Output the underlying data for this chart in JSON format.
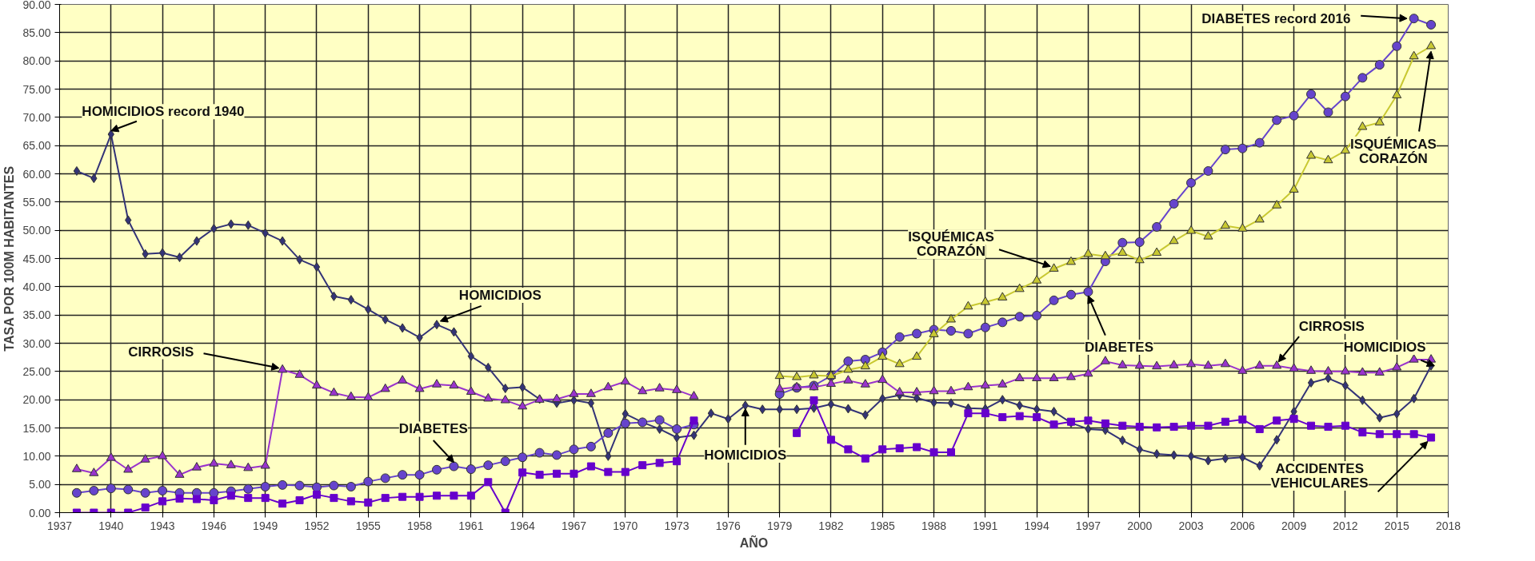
{
  "chart_data": {
    "type": "line",
    "xlabel": "AÑO",
    "ylabel": "TASA POR 100M HABITANTES",
    "x": [
      1938,
      1939,
      1940,
      1941,
      1942,
      1943,
      1944,
      1945,
      1946,
      1947,
      1948,
      1949,
      1950,
      1951,
      1952,
      1953,
      1954,
      1955,
      1956,
      1957,
      1958,
      1959,
      1960,
      1961,
      1962,
      1963,
      1964,
      1965,
      1966,
      1967,
      1968,
      1969,
      1970,
      1971,
      1972,
      1973,
      1974,
      1975,
      1976,
      1977,
      1978,
      1979,
      1980,
      1981,
      1982,
      1983,
      1984,
      1985,
      1986,
      1987,
      1988,
      1989,
      1990,
      1991,
      1992,
      1993,
      1994,
      1995,
      1996,
      1997,
      1998,
      1999,
      2000,
      2001,
      2002,
      2003,
      2004,
      2005,
      2006,
      2007,
      2008,
      2009,
      2010,
      2011,
      2012,
      2013,
      2014,
      2015,
      2016,
      2017
    ],
    "series": [
      {
        "color": "#333377",
        "marker": "diamond",
        "values": [
          60.5,
          59.2,
          67,
          51.8,
          45.8,
          46,
          45.2,
          48.1,
          50.3,
          51.1,
          50.9,
          49.5,
          48.1,
          44.8,
          43.5,
          38.3,
          37.7,
          36,
          34.2,
          32.7,
          31,
          33.3,
          32,
          27.7,
          25.7,
          22,
          22.2,
          20.1,
          19.4,
          19.9,
          19.4,
          10,
          17.5,
          16,
          14.8,
          13.3,
          13.7,
          17.6,
          16.6,
          19,
          18.3,
          18.3,
          18.3,
          18.5,
          19.2,
          18.4,
          17.3,
          20.2,
          20.8,
          20.3,
          19.5,
          19.4,
          18.5,
          18.4,
          20,
          19,
          18.3,
          17.9,
          15.9,
          14.8,
          14.6,
          12.8,
          11.2,
          10.4,
          10.2,
          10,
          9.2,
          9.6,
          9.8,
          8.3,
          12.9,
          17.9,
          23,
          23.8,
          22.5,
          19.9,
          16.8,
          17.5,
          20.2,
          26
        ]
      },
      {
        "color": "#6644cc",
        "marker": "circle",
        "values": [
          3.5,
          3.9,
          4.3,
          4.1,
          3.5,
          3.9,
          3.5,
          3.5,
          3.5,
          3.8,
          4.2,
          4.6,
          4.9,
          4.8,
          4.5,
          4.8,
          4.6,
          5.5,
          6.1,
          6.7,
          6.7,
          7.6,
          8.2,
          7.7,
          8.4,
          9.1,
          9.8,
          10.6,
          10.2,
          11.2,
          11.7,
          14.1,
          15.8,
          16,
          16.4,
          14.8,
          15.6,
          null,
          null,
          null,
          null,
          21,
          22.1,
          22.5,
          24.2,
          26.8,
          27.1,
          28.4,
          31.1,
          31.7,
          32.4,
          32.2,
          31.7,
          32.8,
          33.7,
          34.7,
          34.9,
          37.6,
          38.6,
          39.1,
          44.5,
          47.8,
          47.9,
          50.6,
          54.7,
          58.4,
          60.5,
          64.3,
          64.5,
          65.5,
          69.5,
          70.3,
          74.1,
          70.9,
          73.7,
          77,
          79.3,
          82.6,
          87.5,
          86.4
        ]
      },
      {
        "color": "#9933cc",
        "marker": "triangle",
        "values": [
          7.7,
          7,
          9.7,
          7.6,
          9.4,
          10,
          6.7,
          8,
          8.7,
          8.4,
          7.9,
          8.3,
          25.3,
          24.4,
          22.5,
          21.2,
          20.5,
          20.4,
          21.9,
          23.4,
          21.9,
          22.7,
          22.5,
          21.4,
          20.2,
          19.9,
          18.8,
          20,
          20.1,
          21,
          21,
          22.2,
          23.2,
          21.5,
          22,
          21.7,
          20.6,
          null,
          null,
          null,
          null,
          21.9,
          22.2,
          22.2,
          22.8,
          23.4,
          22.7,
          23.5,
          21.3,
          21.3,
          21.5,
          21.5,
          22.2,
          22.5,
          22.7,
          23.8,
          23.8,
          23.8,
          24,
          24.6,
          26.8,
          26.1,
          26,
          25.9,
          26.1,
          26.3,
          26,
          26.3,
          25.1,
          26,
          26,
          25.5,
          25.1,
          25,
          25,
          24.8,
          24.8,
          25.7,
          27.1,
          27.1
        ]
      },
      {
        "color": "#c8c832",
        "marker": "triangle",
        "x": [
          1979,
          1980,
          1981,
          1982,
          1983,
          1984,
          1985,
          1986,
          1987,
          1988,
          1989,
          1990,
          1991,
          1992,
          1993,
          1994,
          1995,
          1996,
          1997,
          1998,
          1999,
          2000,
          2001,
          2002,
          2003,
          2004,
          2005,
          2006,
          2007,
          2008,
          2009,
          2010,
          2011,
          2012,
          2013,
          2014,
          2015,
          2016,
          2017
        ],
        "values": [
          24.2,
          24,
          24.3,
          24.2,
          25.3,
          25.9,
          27.6,
          26.3,
          27.6,
          31.6,
          34.2,
          36.5,
          37.3,
          38.1,
          39.6,
          41.1,
          43.2,
          44.4,
          45.8,
          45.4,
          46,
          44.7,
          46,
          48.1,
          49.9,
          48.9,
          50.8,
          50.3,
          51.9,
          54.4,
          57.2,
          63.2,
          62.4,
          64.1,
          68.3,
          69.1,
          73.9,
          80.8,
          82.6
        ]
      },
      {
        "color": "#6600cc",
        "marker": "square",
        "values": [
          0,
          0,
          0,
          0,
          0.9,
          2,
          2.5,
          2.4,
          2.2,
          3,
          2.6,
          2.6,
          1.6,
          2.2,
          3.2,
          2.6,
          2,
          1.8,
          2.6,
          2.8,
          2.8,
          3,
          3,
          3,
          5.4,
          0,
          7.1,
          6.7,
          6.9,
          6.9,
          8.2,
          7.2,
          7.2,
          8.4,
          8.8,
          9.1,
          16.3,
          null,
          null,
          null,
          null,
          null,
          14.1,
          19.9,
          12.9,
          11.2,
          9.6,
          11.2,
          11.4,
          11.6,
          10.7,
          10.7,
          17.6,
          17.6,
          16.9,
          17.1,
          16.9,
          15.6,
          16.1,
          16.3,
          15.8,
          15.4,
          15.2,
          15.1,
          15.2,
          15.4,
          15.4,
          16.1,
          16.5,
          14.8,
          16.3,
          16.6,
          15.4,
          15.2,
          15.4,
          14.2,
          13.9,
          13.9,
          13.9,
          13.3
        ]
      }
    ],
    "xlim": [
      1937,
      2018
    ],
    "xticks": [
      1937,
      1940,
      1943,
      1946,
      1949,
      1952,
      1955,
      1958,
      1961,
      1964,
      1967,
      1970,
      1973,
      1976,
      1979,
      1982,
      1985,
      1988,
      1991,
      1994,
      1997,
      2000,
      2003,
      2006,
      2009,
      2012,
      2015,
      2018
    ],
    "ylim": [
      0,
      90
    ],
    "yticks": [
      {
        "value": 0,
        "label": "0.00"
      },
      {
        "value": 5,
        "label": "5.00"
      },
      {
        "value": 10,
        "label": "10.00"
      },
      {
        "value": 15,
        "label": "15.00"
      },
      {
        "value": 20,
        "label": "20.00"
      },
      {
        "value": 25,
        "label": "25.00"
      },
      {
        "value": 30,
        "label": "30.00"
      },
      {
        "value": 35,
        "label": "35.00"
      },
      {
        "value": 40,
        "label": "40.00"
      },
      {
        "value": 45,
        "label": "45.00"
      },
      {
        "value": 50,
        "label": "50.00"
      },
      {
        "value": 55,
        "label": "55.00"
      },
      {
        "value": 60,
        "label": "60.00"
      },
      {
        "value": 65,
        "label": "65.00"
      },
      {
        "value": 70,
        "label": "70.00"
      },
      {
        "value": 75,
        "label": "75.00"
      },
      {
        "value": 80,
        "label": "80.00"
      },
      {
        "value": 85,
        "label": "85.00"
      },
      {
        "value": 90,
        "label": "90.00"
      }
    ],
    "grid": true,
    "line_style": "solid",
    "annotations": [
      {
        "text": "HOMICIDIOS record 1940",
        "x": 1940,
        "y": 67
      },
      {
        "text": "HOMICIDIOS",
        "x": 1959,
        "y": 33.3
      },
      {
        "text": "CIRROSIS",
        "x": 1950,
        "y": 25.3
      },
      {
        "text": "DIABETES",
        "x": 1960,
        "y": 8.2
      },
      {
        "text": "HOMICIDIOS",
        "x": 1977,
        "y": 19
      },
      {
        "text": "ISQUÉMICAS\nCORAZÓN",
        "x": 1995,
        "y": 43.2
      },
      {
        "text": "DIABETES",
        "x": 1997,
        "y": 39.1
      },
      {
        "text": "CIRROSIS",
        "x": 2008,
        "y": 26
      },
      {
        "text": "HOMICIDIOS",
        "x": 2017,
        "y": 26
      },
      {
        "text": "DIABETES record 2016",
        "x": 2016,
        "y": 87.5
      },
      {
        "text": "ISQUÉMICAS\nCORAZÓN",
        "x": 2017,
        "y": 82.6
      },
      {
        "text": "ACCIDENTES\nVEHICULARES",
        "x": 2017,
        "y": 13.3
      }
    ]
  }
}
